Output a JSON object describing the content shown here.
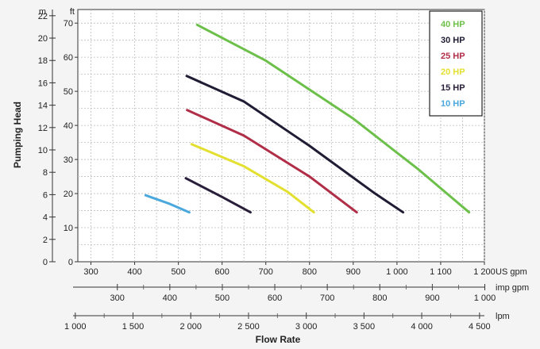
{
  "chart_data": {
    "type": "line",
    "xlabel": "Flow Rate",
    "ylabel": "Pumping Head",
    "grid": true,
    "legend_position": "top-right",
    "x_unit_primary": "US gpm",
    "xlim": [
      270,
      1200
    ],
    "x_ticks": [
      "300",
      "400",
      "500",
      "600",
      "700",
      "800",
      "900",
      "1 000",
      "1 100",
      "1 200"
    ],
    "x_secondary_axes": [
      {
        "unit": "imp gpm",
        "ticks": [
          {
            "label": "300",
            "value": 300
          },
          {
            "label": "400",
            "value": 400
          },
          {
            "label": "500",
            "value": 500
          },
          {
            "label": "600",
            "value": 600
          },
          {
            "label": "700",
            "value": 700
          },
          {
            "label": "800",
            "value": 800
          },
          {
            "label": "900",
            "value": 900
          },
          {
            "label": "1 000",
            "value": 1000
          }
        ]
      },
      {
        "unit": "lpm",
        "ticks": [
          {
            "label": "1 000",
            "value": 1000
          },
          {
            "label": "1 500",
            "value": 1500
          },
          {
            "label": "2 000",
            "value": 2000
          },
          {
            "label": "2 500",
            "value": 2500
          },
          {
            "label": "3 000",
            "value": 3000
          },
          {
            "label": "3 500",
            "value": 3500
          },
          {
            "label": "4 000",
            "value": 4000
          },
          {
            "label": "4 500",
            "value": 4500
          }
        ]
      }
    ],
    "y_unit_primary": "ft",
    "ylim": [
      0,
      74
    ],
    "y_ticks": [
      "0",
      "10",
      "20",
      "30",
      "40",
      "50",
      "60",
      "70"
    ],
    "y_secondary_axis": {
      "unit": "m",
      "ticks": [
        {
          "label": "0",
          "value": 0
        },
        {
          "label": "2",
          "value": 2
        },
        {
          "label": "4",
          "value": 4
        },
        {
          "label": "6",
          "value": 6
        },
        {
          "label": "8",
          "value": 8
        },
        {
          "label": "10",
          "value": 10
        },
        {
          "label": "12",
          "value": 12
        },
        {
          "label": "14",
          "value": 14
        },
        {
          "label": "16",
          "value": 16
        },
        {
          "label": "18",
          "value": 18
        },
        {
          "label": "20",
          "value": 20
        },
        {
          "label": "22",
          "value": 22
        }
      ]
    },
    "series": [
      {
        "name": "40 HP",
        "color": "#6cc04a",
        "x": [
          543,
          700,
          900,
          1050,
          1165
        ],
        "y": [
          69.5,
          59,
          42,
          27,
          14.5
        ]
      },
      {
        "name": "30 HP",
        "color": "#1f1c33",
        "x": [
          519,
          650,
          800,
          950,
          1014
        ],
        "y": [
          54.5,
          47,
          34,
          20,
          14.5
        ]
      },
      {
        "name": "25 HP",
        "color": "#b02e47",
        "x": [
          520,
          650,
          800,
          908
        ],
        "y": [
          44.5,
          37,
          25,
          14.5
        ]
      },
      {
        "name": "20 HP",
        "color": "#e3e032",
        "x": [
          530,
          650,
          750,
          810
        ],
        "y": [
          34.5,
          28,
          20.5,
          14.5
        ]
      },
      {
        "name": "15 HP",
        "color": "#2a1f3a",
        "x": [
          517,
          600,
          665
        ],
        "y": [
          24.5,
          19,
          14.5
        ]
      },
      {
        "name": "10 HP",
        "color": "#4aa8dc",
        "x": [
          425,
          480,
          525
        ],
        "y": [
          19.5,
          17,
          14.5
        ]
      }
    ]
  }
}
